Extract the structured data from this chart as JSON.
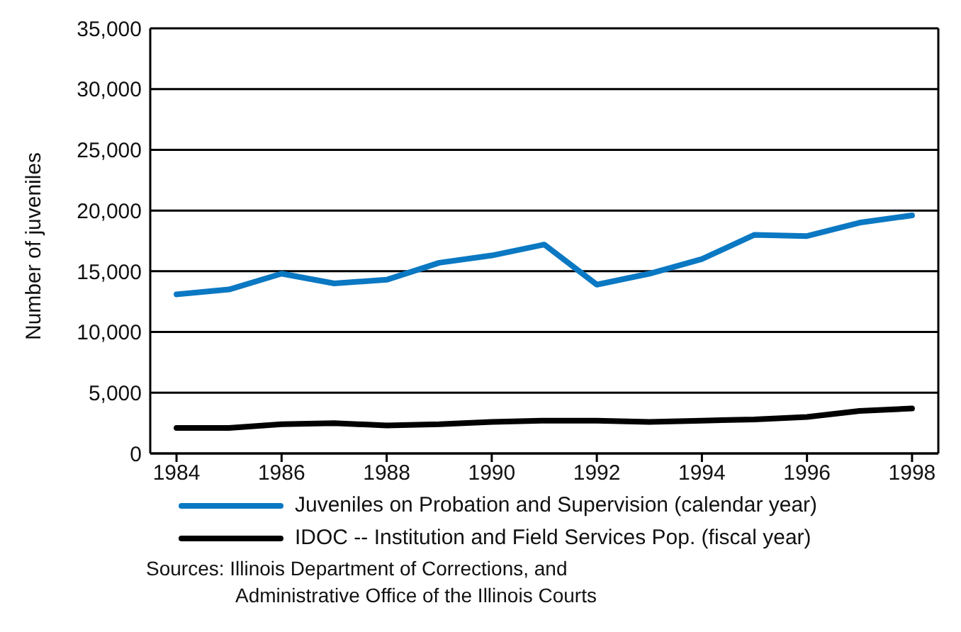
{
  "chart_data": {
    "type": "line",
    "ylabel": "Number of juveniles",
    "x": [
      1984,
      1985,
      1986,
      1987,
      1988,
      1989,
      1990,
      1991,
      1992,
      1993,
      1994,
      1995,
      1996,
      1997,
      1998
    ],
    "series": [
      {
        "name": "Juveniles on Probation and Supervision (calendar year)",
        "color": "#0a78c2",
        "values": [
          13100,
          13500,
          14800,
          14000,
          14300,
          15700,
          16300,
          17200,
          13900,
          14800,
          16000,
          18000,
          17900,
          19000,
          19600
        ]
      },
      {
        "name": "IDOC -- Institution and Field Services Pop. (fiscal year)",
        "color": "#000000",
        "values": [
          2100,
          2100,
          2400,
          2500,
          2300,
          2400,
          2600,
          2700,
          2700,
          2600,
          2700,
          2800,
          3000,
          3500,
          3700
        ]
      }
    ],
    "xlim": [
      1983.5,
      1998.5
    ],
    "xticks": [
      1984,
      1986,
      1988,
      1990,
      1992,
      1994,
      1996,
      1998
    ],
    "ylim": [
      0,
      35000
    ],
    "yticks": [
      0,
      {
        "value": 5000,
        "label": "5,000"
      },
      {
        "value": 10000,
        "label": "10,000"
      },
      {
        "value": 15000,
        "label": "15,000"
      },
      {
        "value": 20000,
        "label": "20,000"
      },
      {
        "value": 25000,
        "label": "25,000"
      },
      {
        "value": 30000,
        "label": "30,000"
      },
      {
        "value": 35000,
        "label": "35,000"
      }
    ],
    "grid": "y",
    "legend": "bottom",
    "marker": "none",
    "line_style": "solid",
    "annotations": [
      "Sources: Illinois Department of Corrections, and\nAdministrative Office of the Illinois Courts"
    ]
  }
}
